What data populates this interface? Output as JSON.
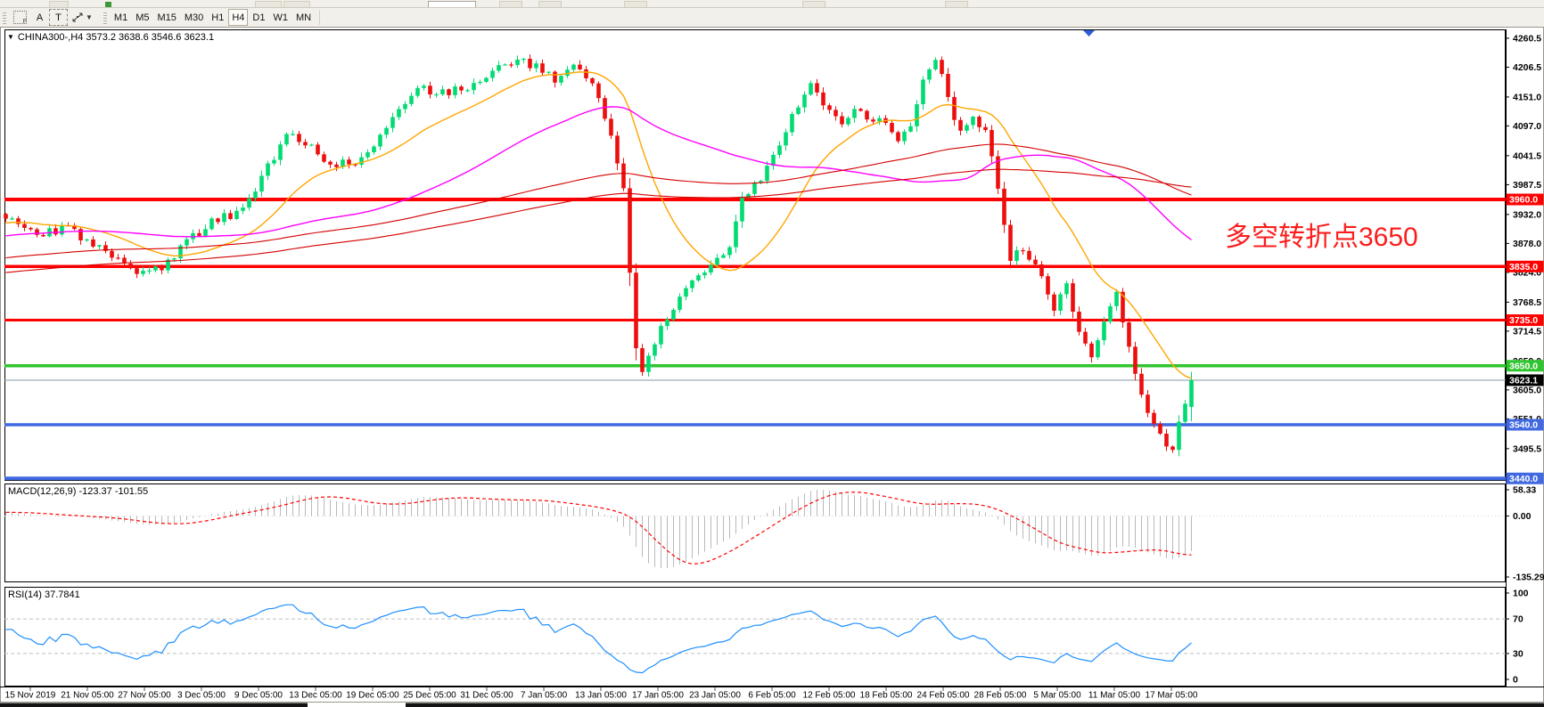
{
  "toolbar": {
    "text_tool": "A",
    "label_tool": "T",
    "timeframes": [
      "M1",
      "M5",
      "M15",
      "M30",
      "H1",
      "H4",
      "D1",
      "W1",
      "MN"
    ],
    "active_timeframe": "H4"
  },
  "chart": {
    "title": "CHINA300-,H4 3573.2 3638.6 3546.6 3623.1",
    "annotation": {
      "text": "多空转折点3650",
      "color": "#fb1d1d"
    }
  },
  "chart_data": {
    "type": "candlestick",
    "symbol": "CHINA300-",
    "timeframe": "H4",
    "ohlc_last_bar": {
      "open": 3573.2,
      "high": 3638.6,
      "low": 3546.6,
      "close": 3623.1
    },
    "bars_visible": 191,
    "close_keyframes": [
      [
        0,
        3925
      ],
      [
        5,
        3892
      ],
      [
        10,
        3908
      ],
      [
        15,
        3867
      ],
      [
        21,
        3825
      ],
      [
        25,
        3833
      ],
      [
        29,
        3883
      ],
      [
        33,
        3917
      ],
      [
        38,
        3941
      ],
      [
        41,
        3999
      ],
      [
        45,
        4082
      ],
      [
        48,
        4065
      ],
      [
        52,
        4023
      ],
      [
        56,
        4031
      ],
      [
        59,
        4056
      ],
      [
        62,
        4115
      ],
      [
        66,
        4174
      ],
      [
        69,
        4157
      ],
      [
        72,
        4165
      ],
      [
        75,
        4174
      ],
      [
        78,
        4199
      ],
      [
        82,
        4224
      ],
      [
        85,
        4207
      ],
      [
        88,
        4182
      ],
      [
        91,
        4207
      ],
      [
        93,
        4190
      ],
      [
        95,
        4149
      ],
      [
        97,
        4082
      ],
      [
        99,
        3983
      ],
      [
        100,
        3820
      ],
      [
        101,
        3684
      ],
      [
        102,
        3634
      ],
      [
        105,
        3717
      ],
      [
        108,
        3784
      ],
      [
        111,
        3817
      ],
      [
        113,
        3842
      ],
      [
        116,
        3875
      ],
      [
        118,
        3958
      ],
      [
        121,
        3999
      ],
      [
        124,
        4065
      ],
      [
        126,
        4115
      ],
      [
        129,
        4182
      ],
      [
        131,
        4132
      ],
      [
        134,
        4099
      ],
      [
        136,
        4132
      ],
      [
        138,
        4115
      ],
      [
        141,
        4099
      ],
      [
        143,
        4065
      ],
      [
        145,
        4099
      ],
      [
        147,
        4182
      ],
      [
        149,
        4224
      ],
      [
        151,
        4149
      ],
      [
        153,
        4082
      ],
      [
        155,
        4115
      ],
      [
        157,
        4082
      ],
      [
        159,
        3983
      ],
      [
        161,
        3850
      ],
      [
        163,
        3867
      ],
      [
        166,
        3817
      ],
      [
        168,
        3759
      ],
      [
        170,
        3800
      ],
      [
        172,
        3717
      ],
      [
        174,
        3667
      ],
      [
        176,
        3733
      ],
      [
        178,
        3784
      ],
      [
        181,
        3634
      ],
      [
        183,
        3568
      ],
      [
        185,
        3518
      ],
      [
        187,
        3493
      ],
      [
        188,
        3551
      ],
      [
        190,
        3623.1
      ]
    ],
    "candle_colors": {
      "up": "#00db72",
      "down": "#ed0e0e"
    },
    "y_axis": {
      "price_top": 4277.0,
      "price_bottom": 3435.5,
      "tick_labels": [
        "4260.5",
        "4206.5",
        "4151.0",
        "4097.0",
        "4041.5",
        "3987.5",
        "3932.0",
        "3878.0",
        "3824.0",
        "3768.5",
        "3714.5",
        "3659.0",
        "3605.0",
        "3551.0",
        "3495.5"
      ]
    },
    "x_axis": {
      "labels": [
        "15 Nov 2019",
        "21 Nov 05:00",
        "27 Nov 05:00",
        "3 Dec 05:00",
        "9 Dec 05:00",
        "13 Dec 05:00",
        "19 Dec 05:00",
        "25 Dec 05:00",
        "31 Dec 05:00",
        "7 Jan 05:00",
        "13 Jan 05:00",
        "17 Jan 05:00",
        "23 Jan 05:00",
        "6 Feb 05:00",
        "12 Feb 05:00",
        "18 Feb 05:00",
        "24 Feb 05:00",
        "28 Feb 05:00",
        "5 Mar 05:00",
        "11 Mar 05:00",
        "17 Mar 05:00"
      ]
    },
    "horizontal_lines": [
      {
        "price": 3960.0,
        "label": "3960.0",
        "color": "#ff0000",
        "width": 4
      },
      {
        "price": 3835.0,
        "label": "3835.0",
        "color": "#ff0000",
        "width": 3.5
      },
      {
        "price": 3735.0,
        "label": "3735.0",
        "color": "#ff0000",
        "width": 3
      },
      {
        "price": 3650.0,
        "label": "3650.0",
        "color": "#2fc52f",
        "width": 3.5
      },
      {
        "price": 3540.0,
        "label": "3540.0",
        "color": "#4169e1",
        "width": 3.5
      },
      {
        "price": 3440.0,
        "label": "3440.0",
        "color": "#4169e1",
        "width": 4
      }
    ],
    "current_price": {
      "value": 3623.1,
      "label": "3623.1",
      "line_color": "#8494a4",
      "box_color": "#000000"
    },
    "moving_averages": [
      {
        "name": "fast",
        "type": "wma",
        "period": 26,
        "color": "#ffa500"
      },
      {
        "name": "medium",
        "type": "sma",
        "period": 55,
        "color": "#ff00ff"
      },
      {
        "name": "slow",
        "type": "sma",
        "period": 120,
        "color": "#d40000"
      },
      {
        "name": "slowest",
        "type": "sma",
        "period": 165,
        "color": "#d40000"
      }
    ],
    "macd": {
      "header": "MACD(12,26,9) -123.37 -101.55",
      "fast": 12,
      "slow": 26,
      "signal": 9,
      "values": {
        "macd": -123.37,
        "signal": -101.55
      },
      "axis": [
        {
          "v": 58.33,
          "label": "58.33"
        },
        {
          "v": 0,
          "label": "0.00"
        },
        {
          "v": -135.29,
          "label": "-135.29"
        }
      ],
      "histogram_color": "#b9b9b9",
      "signal_color": "#ff0000"
    },
    "rsi": {
      "header": "RSI(14) 37.7841",
      "period": 14,
      "value": 37.7841,
      "axis": [
        {
          "v": 100,
          "label": "100"
        },
        {
          "v": 70,
          "label": "70"
        },
        {
          "v": 30,
          "label": "30"
        },
        {
          "v": 0,
          "label": "0"
        }
      ],
      "levels": [
        70,
        30
      ],
      "line_color": "#1e90ff",
      "level_color": "#c0c0c0"
    }
  }
}
